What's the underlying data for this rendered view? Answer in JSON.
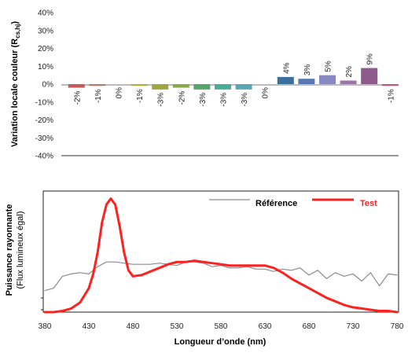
{
  "chart_data": [
    {
      "type": "bar",
      "ylabel": "Variation locale couleur (R",
      "ylabel_sub": "cs,hj",
      "ylabel_close": ")",
      "ylim": [
        -40,
        40
      ],
      "yticks": [
        "40%",
        "30%",
        "20%",
        "10%",
        "0%",
        "-10%",
        "-20%",
        "-30%",
        "-40%"
      ],
      "grid": false,
      "values": [
        -2,
        -1,
        0,
        -1,
        -3,
        -2,
        -3,
        -3,
        -3,
        0,
        4,
        3,
        5,
        2,
        9,
        -1
      ],
      "labels": [
        "-2%",
        "-1%",
        "0%",
        "-1%",
        "-3%",
        "-2%",
        "-3%",
        "-3%",
        "-3%",
        "0%",
        "4%",
        "3%",
        "5%",
        "2%",
        "9%",
        "-1%"
      ],
      "colors": [
        "#c45b5b",
        "#b07a6d",
        "#a2965c",
        "#b8ad3c",
        "#9fa63b",
        "#86a84c",
        "#58a36b",
        "#4aab98",
        "#5aa6b4",
        "#6b8fb6",
        "#3a6f9e",
        "#5877b4",
        "#8a88c0",
        "#9b74a8",
        "#8d5a8c",
        "#b45e79"
      ]
    },
    {
      "type": "line",
      "ylabel_line1": "Puissance rayonnante",
      "ylabel_line2": "(Flux lumineux égal)",
      "xlabel": "Longueur d’onde (nm)",
      "xticks": [
        380,
        430,
        480,
        530,
        580,
        630,
        680,
        730,
        780
      ],
      "xlim": [
        380,
        780
      ],
      "series": [
        {
          "name": "Référence",
          "color": "#8c8c8c",
          "x": [
            380,
            390,
            400,
            410,
            420,
            430,
            440,
            450,
            460,
            470,
            480,
            490,
            500,
            510,
            520,
            530,
            540,
            550,
            560,
            570,
            580,
            590,
            600,
            610,
            620,
            630,
            640,
            650,
            660,
            670,
            680,
            690,
            700,
            710,
            720,
            730,
            740,
            750,
            760,
            770,
            780
          ],
          "y": [
            0.18,
            0.2,
            0.3,
            0.32,
            0.33,
            0.32,
            0.38,
            0.42,
            0.42,
            0.41,
            0.4,
            0.4,
            0.4,
            0.41,
            0.4,
            0.39,
            0.42,
            0.42,
            0.41,
            0.38,
            0.39,
            0.37,
            0.37,
            0.38,
            0.36,
            0.36,
            0.34,
            0.36,
            0.35,
            0.37,
            0.31,
            0.35,
            0.28,
            0.33,
            0.3,
            0.32,
            0.26,
            0.33,
            0.22,
            0.32,
            0.31
          ]
        },
        {
          "name": "Test",
          "color": "#ff2020",
          "x": [
            380,
            390,
            400,
            410,
            420,
            430,
            435,
            440,
            445,
            450,
            455,
            460,
            465,
            470,
            475,
            480,
            490,
            500,
            510,
            520,
            530,
            540,
            550,
            560,
            570,
            580,
            590,
            600,
            610,
            620,
            630,
            640,
            650,
            660,
            670,
            680,
            690,
            700,
            710,
            720,
            730,
            740,
            750,
            760,
            770,
            780
          ],
          "y": [
            0.0,
            0.0,
            0.01,
            0.03,
            0.08,
            0.2,
            0.32,
            0.5,
            0.75,
            0.9,
            0.95,
            0.9,
            0.72,
            0.5,
            0.35,
            0.3,
            0.31,
            0.34,
            0.37,
            0.4,
            0.42,
            0.42,
            0.43,
            0.42,
            0.41,
            0.4,
            0.39,
            0.39,
            0.39,
            0.39,
            0.39,
            0.37,
            0.33,
            0.28,
            0.24,
            0.2,
            0.16,
            0.12,
            0.09,
            0.06,
            0.04,
            0.03,
            0.02,
            0.01,
            0.01,
            0.0
          ]
        }
      ],
      "legend_position": "top-right"
    }
  ]
}
